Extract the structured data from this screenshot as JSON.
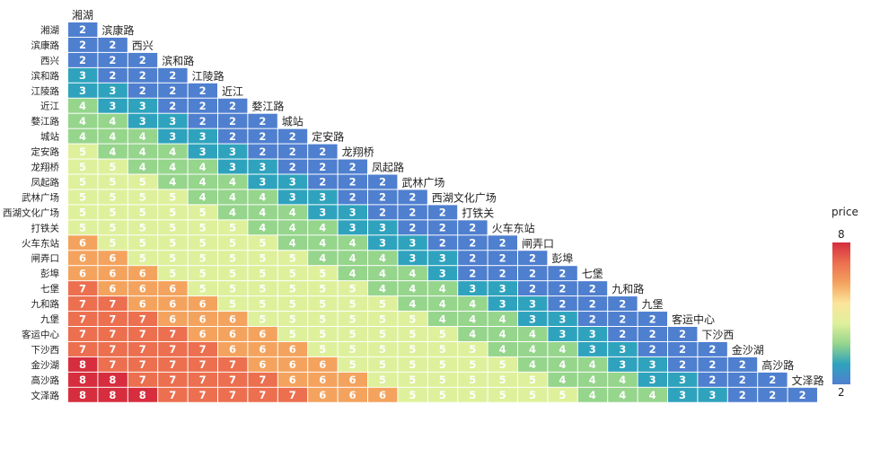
{
  "chart_data": {
    "type": "heatmap",
    "stations": [
      "湘湖",
      "滨康路",
      "西兴",
      "滨和路",
      "江陵路",
      "近江",
      "婺江路",
      "城站",
      "定安路",
      "龙翔桥",
      "凤起路",
      "武林广场",
      "西湖文化广场",
      "打铁关",
      "火车东站",
      "闸弄口",
      "彭埠",
      "七堡",
      "九和路",
      "九堡",
      "客运中心",
      "下沙西",
      "金沙湖",
      "高沙路",
      "文泽路"
    ],
    "rows": [
      [
        2
      ],
      [
        2,
        2
      ],
      [
        2,
        2,
        2
      ],
      [
        3,
        2,
        2,
        2
      ],
      [
        3,
        3,
        2,
        2,
        2
      ],
      [
        4,
        3,
        3,
        2,
        2,
        2
      ],
      [
        4,
        4,
        3,
        3,
        2,
        2,
        2
      ],
      [
        4,
        4,
        4,
        3,
        3,
        2,
        2,
        2
      ],
      [
        5,
        4,
        4,
        4,
        3,
        3,
        2,
        2,
        2
      ],
      [
        5,
        5,
        4,
        4,
        4,
        3,
        3,
        2,
        2,
        2
      ],
      [
        5,
        5,
        5,
        4,
        4,
        4,
        3,
        3,
        2,
        2,
        2
      ],
      [
        5,
        5,
        5,
        5,
        4,
        4,
        4,
        3,
        3,
        2,
        2,
        2
      ],
      [
        5,
        5,
        5,
        5,
        5,
        4,
        4,
        4,
        3,
        3,
        2,
        2,
        2
      ],
      [
        5,
        5,
        5,
        5,
        5,
        5,
        4,
        4,
        4,
        3,
        3,
        2,
        2,
        2
      ],
      [
        6,
        5,
        5,
        5,
        5,
        5,
        5,
        4,
        4,
        4,
        3,
        3,
        2,
        2,
        2
      ],
      [
        6,
        6,
        5,
        5,
        5,
        5,
        5,
        5,
        4,
        4,
        4,
        3,
        3,
        2,
        2,
        2
      ],
      [
        6,
        6,
        6,
        5,
        5,
        5,
        5,
        5,
        5,
        4,
        4,
        4,
        3,
        2,
        2,
        2,
        2
      ],
      [
        7,
        6,
        6,
        6,
        5,
        5,
        5,
        5,
        5,
        5,
        4,
        4,
        4,
        3,
        3,
        2,
        2,
        2
      ],
      [
        7,
        7,
        6,
        6,
        6,
        5,
        5,
        5,
        5,
        5,
        5,
        4,
        4,
        4,
        3,
        3,
        2,
        2,
        2
      ],
      [
        7,
        7,
        7,
        6,
        6,
        6,
        5,
        5,
        5,
        5,
        5,
        5,
        4,
        4,
        4,
        3,
        3,
        2,
        2,
        2
      ],
      [
        7,
        7,
        7,
        7,
        6,
        6,
        6,
        5,
        5,
        5,
        5,
        5,
        5,
        4,
        4,
        4,
        3,
        3,
        2,
        2,
        2
      ],
      [
        7,
        7,
        7,
        7,
        7,
        6,
        6,
        6,
        5,
        5,
        5,
        5,
        5,
        5,
        4,
        4,
        4,
        3,
        3,
        2,
        2,
        2
      ],
      [
        8,
        7,
        7,
        7,
        7,
        7,
        6,
        6,
        6,
        5,
        5,
        5,
        5,
        5,
        5,
        4,
        4,
        4,
        3,
        3,
        2,
        2,
        2
      ],
      [
        8,
        8,
        7,
        7,
        7,
        7,
        7,
        6,
        6,
        6,
        5,
        5,
        5,
        5,
        5,
        5,
        4,
        4,
        4,
        3,
        3,
        2,
        2,
        2
      ],
      [
        8,
        8,
        8,
        7,
        7,
        7,
        7,
        7,
        6,
        6,
        6,
        5,
        5,
        5,
        5,
        5,
        5,
        4,
        4,
        4,
        3,
        3,
        2,
        2,
        2
      ]
    ],
    "legend": {
      "title": "price",
      "min": 2,
      "max": 8,
      "position": "right"
    },
    "colors": {
      "2": "#4f7fcf",
      "3": "#2fa3bd",
      "4": "#96d58c",
      "5": "#dff09c",
      "6": "#f4a35e",
      "7": "#ec6f4f",
      "8": "#d62e3e"
    },
    "colorbar_stops": [
      "#d62e3e",
      "#ec6f4f",
      "#f4a35e",
      "#fbe59a",
      "#dff09c",
      "#96d58c",
      "#2fa3bd",
      "#4f7fcf"
    ],
    "grid": false
  }
}
